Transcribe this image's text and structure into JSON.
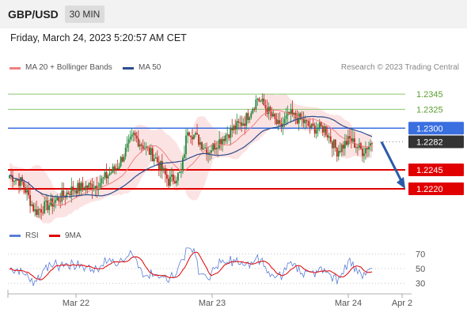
{
  "header": {
    "symbol": "GBP/USD",
    "timeframe": "30 MIN"
  },
  "datetime": "Friday, March 24, 2023 5:20:57 AM CET",
  "legend": {
    "ma20": {
      "label": "MA 20 + Bollinger Bands",
      "color": "#f08080"
    },
    "ma50": {
      "label": "MA 50",
      "color": "#2c4c8c"
    }
  },
  "copyright": "Research © 2023 Trading Central",
  "rsi_legend": {
    "rsi": {
      "label": "RSI",
      "color": "#5b7fd6"
    },
    "ma9": {
      "label": "9MA",
      "color": "#e00000"
    }
  },
  "colors": {
    "up": "#1f8a3a",
    "down": "#c0281e",
    "band": "#fbdada",
    "support": "#e00000",
    "pivot": "#3a6fe0",
    "resistance": "#8cc870",
    "current": "#333333",
    "arrow": "#2a5aa8"
  },
  "chart_data": {
    "type": "candlestick",
    "levels": [
      {
        "value": 1.2345,
        "label": "1.2345",
        "kind": "resistance"
      },
      {
        "value": 1.2325,
        "label": "1.2325",
        "kind": "resistance"
      },
      {
        "value": 1.23,
        "label": "1.2300",
        "kind": "pivot"
      },
      {
        "value": 1.2282,
        "label": "1.2282",
        "kind": "current"
      },
      {
        "value": 1.2245,
        "label": "1.2245",
        "kind": "support"
      },
      {
        "value": 1.222,
        "label": "1.2220",
        "kind": "support"
      }
    ],
    "y_range": [
      1.2172,
      1.2365
    ],
    "x_labels": [
      "Mar 22",
      "Mar 23",
      "Mar 24",
      "Apr 2"
    ],
    "rsi": {
      "levels": [
        70,
        50,
        30
      ],
      "range": [
        20,
        80
      ]
    },
    "forecast": {
      "from": 1.2282,
      "to": 1.222
    }
  }
}
